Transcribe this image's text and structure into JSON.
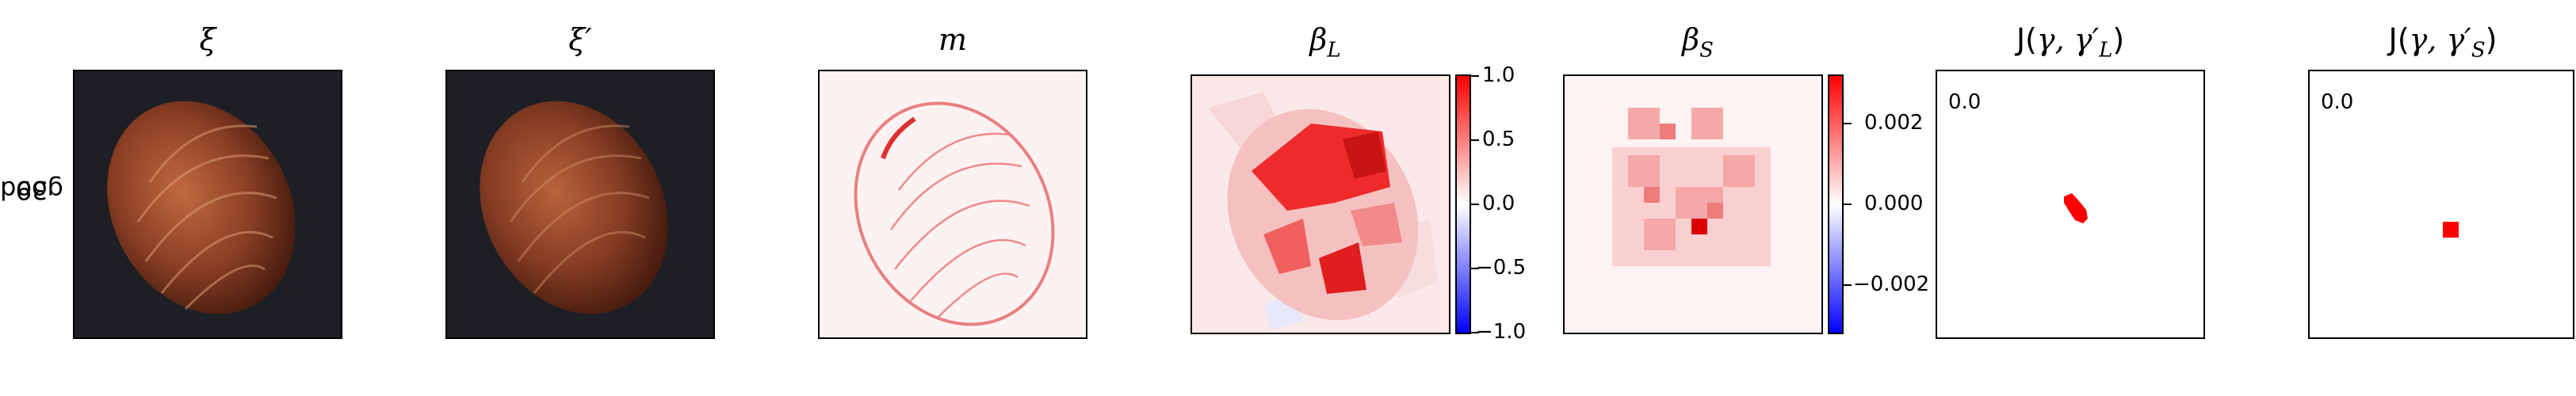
{
  "row_label": {
    "line1": "good",
    "line2": "39"
  },
  "panels": [
    {
      "key": "xi",
      "title": "ξ"
    },
    {
      "key": "xi_prime",
      "title": "ξ′"
    },
    {
      "key": "m",
      "title": "m"
    },
    {
      "key": "beta_L",
      "title": "β",
      "subscript": "L"
    },
    {
      "key": "beta_S",
      "title": "β",
      "subscript": "S"
    },
    {
      "key": "J_L",
      "title_prefix": "J(",
      "title_args": "γ, γ′",
      "subscript": "L",
      "title_suffix": ")",
      "value_label": "0.0"
    },
    {
      "key": "J_S",
      "title_prefix": "J(",
      "title_args": "γ, γ′",
      "subscript": "S",
      "title_suffix": ")",
      "value_label": "0.0"
    }
  ],
  "colorbars": {
    "beta_L": {
      "ticks": [
        "1.0",
        "0.5",
        "0.0",
        "−0.5",
        "−1.0"
      ]
    },
    "beta_S": {
      "ticks": [
        "0.002",
        "0.000",
        "−0.002"
      ]
    }
  },
  "colors": {
    "positive": "#ff0000",
    "negative": "#0000ff",
    "neutral": "#ffffff",
    "photo_background": "#1e1f24",
    "nut_base": "#8b3f24"
  }
}
